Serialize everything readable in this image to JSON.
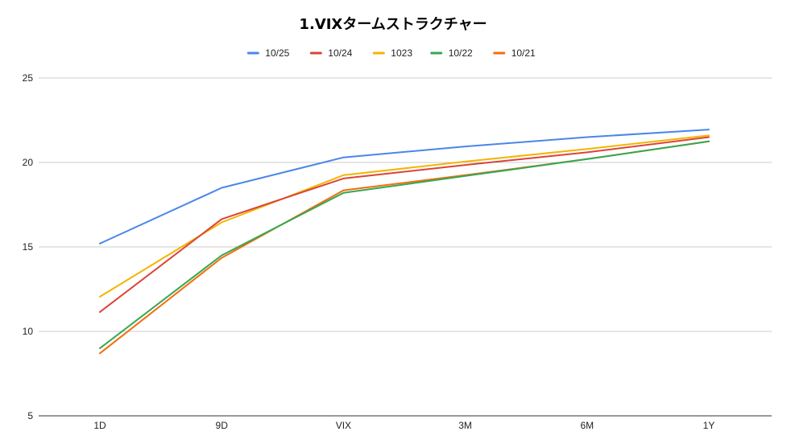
{
  "chart_data": {
    "type": "line",
    "title": "1.VIXタームストラクチャー",
    "xlabel": "",
    "ylabel": "",
    "categories": [
      "1D",
      "9D",
      "VIX",
      "3M",
      "6M",
      "1Y"
    ],
    "ylim": [
      5,
      25
    ],
    "yticks": [
      5,
      10,
      15,
      20,
      25
    ],
    "grid": true,
    "legend_position": "top",
    "series": [
      {
        "name": "10/25",
        "color": "#4a86e8",
        "values": [
          15.2,
          18.5,
          20.3,
          20.95,
          21.5,
          21.95
        ]
      },
      {
        "name": "10/24",
        "color": "#db4437",
        "values": [
          11.15,
          16.65,
          19.05,
          19.85,
          20.6,
          21.5
        ]
      },
      {
        "name": "1023",
        "color": "#f4b400",
        "values": [
          12.05,
          16.45,
          19.25,
          20.05,
          20.8,
          21.6
        ]
      },
      {
        "name": "10/22",
        "color": "#34a853",
        "values": [
          9.0,
          14.5,
          18.2,
          19.2,
          20.2,
          21.25
        ]
      },
      {
        "name": "10/21",
        "color": "#f46d0e",
        "values": [
          8.7,
          14.35,
          18.35,
          19.25,
          20.2,
          21.25
        ]
      }
    ]
  }
}
